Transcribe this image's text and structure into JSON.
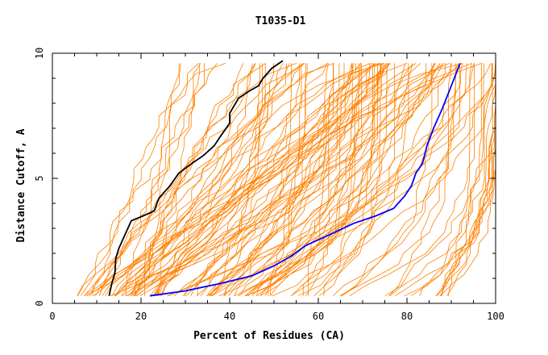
{
  "chart_data": {
    "type": "line",
    "title": "T1035-D1",
    "xlabel": "Percent of Residues (CA)",
    "ylabel": "Distance Cutoff, A",
    "xlim": [
      0,
      100
    ],
    "ylim": [
      0,
      10
    ],
    "x_ticks": [
      "0",
      "20",
      "40",
      "60",
      "80",
      "100"
    ],
    "y_ticks": [
      "0",
      "5",
      "10"
    ],
    "grid": false,
    "background_series_color": "#ff8000",
    "background_series_count": 120,
    "series": [
      {
        "color": "#000000",
        "x": [
          12.8,
          13.4,
          14.1,
          14.3,
          15.0,
          16.5,
          17.8,
          20.5,
          23.0,
          24.0,
          26.5,
          28.5,
          31.5,
          34.0,
          36.5,
          38.0,
          40.0,
          40.0,
          42.0,
          44.5,
          46.5,
          47.5,
          49.5,
          52.0
        ],
        "y": [
          0.3,
          0.8,
          1.2,
          1.8,
          2.2,
          2.8,
          3.3,
          3.5,
          3.7,
          4.2,
          4.7,
          5.2,
          5.6,
          5.9,
          6.3,
          6.7,
          7.2,
          7.6,
          8.2,
          8.5,
          8.7,
          9.0,
          9.4,
          9.7
        ]
      },
      {
        "color": "#0000ff",
        "x": [
          22.0,
          30.0,
          38.0,
          45.0,
          50.0,
          54.0,
          57.0,
          62.0,
          68.0,
          73.0,
          77.0,
          79.5,
          81.0,
          82.0,
          83.5,
          84.5,
          86.0,
          88.0,
          90.0,
          92.0
        ],
        "y": [
          0.3,
          0.5,
          0.8,
          1.1,
          1.5,
          1.9,
          2.3,
          2.7,
          3.2,
          3.5,
          3.8,
          4.3,
          4.7,
          5.2,
          5.6,
          6.3,
          7.0,
          7.8,
          8.7,
          9.6
        ]
      }
    ]
  }
}
